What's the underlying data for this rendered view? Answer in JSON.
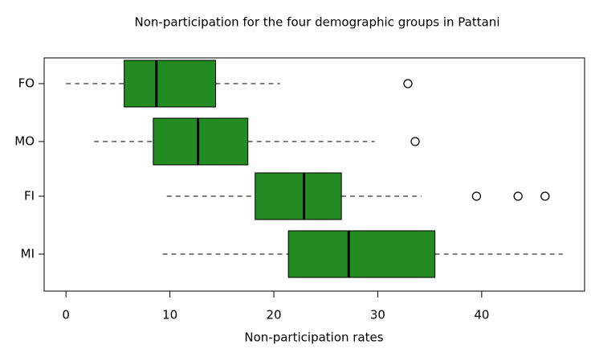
{
  "chart_data": {
    "type": "box",
    "title": "Non-participation for the four demographic groups in Pattani",
    "x_label": "Non-participation rates",
    "categories": [
      "FO",
      "MO",
      "FI",
      "MI"
    ],
    "boxes": [
      {
        "min": 0,
        "q1": 5.6,
        "median": 8.7,
        "q3": 14.4,
        "max": 20.6,
        "outliers": [
          32.9
        ]
      },
      {
        "min": 2.7,
        "q1": 8.4,
        "median": 12.7,
        "q3": 17.5,
        "max": 29.7,
        "outliers": [
          33.6
        ]
      },
      {
        "min": 9.7,
        "q1": 18.2,
        "median": 22.9,
        "q3": 26.5,
        "max": 34.2,
        "outliers": [
          39.5,
          43.5,
          46.1
        ]
      },
      {
        "min": 9.3,
        "q1": 21.4,
        "median": 27.2,
        "q3": 35.5,
        "max": 47.8,
        "outliers": []
      }
    ],
    "color": "#228b22",
    "xlim": [
      -2.1,
      49.9
    ],
    "xticks": [
      0,
      10,
      20,
      30,
      40
    ]
  }
}
